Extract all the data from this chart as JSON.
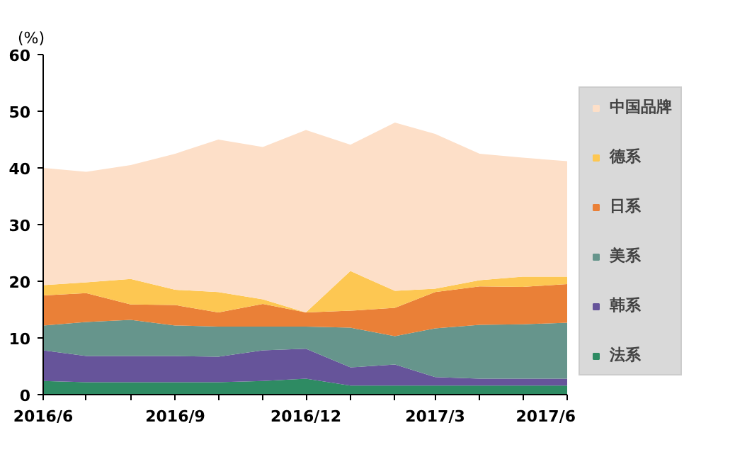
{
  "chart_data": {
    "type": "area",
    "stacked": true,
    "ylabel": "(%)",
    "x": [
      "2016-06",
      "2016-07",
      "2016-08",
      "2016-09",
      "2016-10",
      "2016-11",
      "2016-12",
      "2017-01",
      "2017-02",
      "2017-03",
      "2017-04",
      "2017-05",
      "2017-06"
    ],
    "series": [
      {
        "name": "法系",
        "color": "#2e8b63",
        "values": [
          2.4,
          2.2,
          2.2,
          2.2,
          2.2,
          2.4,
          2.8,
          1.6,
          1.6,
          1.6,
          1.6,
          1.6,
          1.6
        ]
      },
      {
        "name": "韩系",
        "color": "#66549a",
        "values": [
          5.4,
          4.6,
          4.6,
          4.6,
          4.5,
          5.4,
          5.3,
          3.2,
          3.7,
          1.5,
          1.2,
          1.2,
          1.2
        ]
      },
      {
        "name": "美系",
        "color": "#66958c",
        "values": [
          4.4,
          6.0,
          6.4,
          5.4,
          5.3,
          4.2,
          3.9,
          7.0,
          5.0,
          8.6,
          9.5,
          9.6,
          9.9
        ]
      },
      {
        "name": "日系",
        "color": "#ea8037",
        "values": [
          5.3,
          5.1,
          2.7,
          3.6,
          2.5,
          4.0,
          2.5,
          3.0,
          5.0,
          6.4,
          6.8,
          6.6,
          6.8
        ]
      },
      {
        "name": "德系",
        "color": "#fdc752",
        "values": [
          1.8,
          1.9,
          4.5,
          2.7,
          3.6,
          0.8,
          0.0,
          7.0,
          3.0,
          0.6,
          1.1,
          1.8,
          1.3
        ]
      },
      {
        "name": "中国品牌",
        "color": "#fddfc8",
        "values": [
          20.7,
          19.5,
          20.1,
          24.0,
          26.9,
          26.9,
          32.2,
          22.3,
          29.7,
          27.3,
          22.3,
          21.0,
          20.4
        ]
      }
    ],
    "xlim": [
      "2016-06",
      "2017-06"
    ],
    "xticks": [
      {
        "value": "2016-06",
        "label": "2016/6"
      },
      {
        "value": "2016-07",
        "label": null
      },
      {
        "value": "2016-08",
        "label": null
      },
      {
        "value": "2016-09",
        "label": "2016/9"
      },
      {
        "value": "2016-10",
        "label": null
      },
      {
        "value": "2016-11",
        "label": null
      },
      {
        "value": "2016-12",
        "label": "2016/12"
      },
      {
        "value": "2017-01",
        "label": null
      },
      {
        "value": "2017-02",
        "label": null
      },
      {
        "value": "2017-03",
        "label": "2017/3"
      },
      {
        "value": "2017-04",
        "label": null
      },
      {
        "value": "2017-05",
        "label": null
      },
      {
        "value": "2017-06",
        "label": "2017/6"
      }
    ],
    "ylim": [
      0,
      60
    ],
    "yticks": [
      0,
      10,
      20,
      30,
      40,
      50,
      60
    ],
    "grid": false,
    "legend": "right"
  }
}
